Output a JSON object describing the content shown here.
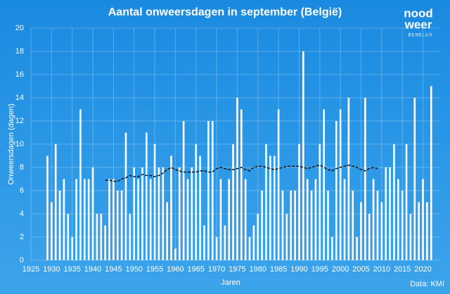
{
  "chart_data": {
    "type": "bar",
    "title": "Aantal onweersdagen in september (België)",
    "x_label": "Jaren",
    "y_label": "Onweersdagen (dagen)",
    "source": "Data: KMI",
    "logo": {
      "line1": "nood",
      "line2": "weer",
      "line3": "BENELUX"
    },
    "x": [
      1929,
      1930,
      1931,
      1932,
      1933,
      1934,
      1935,
      1936,
      1937,
      1938,
      1939,
      1940,
      1941,
      1942,
      1943,
      1944,
      1945,
      1946,
      1947,
      1948,
      1949,
      1950,
      1951,
      1952,
      1953,
      1954,
      1955,
      1956,
      1957,
      1958,
      1959,
      1960,
      1961,
      1962,
      1963,
      1964,
      1965,
      1966,
      1967,
      1968,
      1969,
      1970,
      1971,
      1972,
      1973,
      1974,
      1975,
      1976,
      1977,
      1978,
      1979,
      1980,
      1981,
      1982,
      1983,
      1984,
      1985,
      1986,
      1987,
      1988,
      1989,
      1990,
      1991,
      1992,
      1993,
      1994,
      1995,
      1996,
      1997,
      1998,
      1999,
      2000,
      2001,
      2002,
      2003,
      2004,
      2005,
      2006,
      2007,
      2008,
      2009,
      2010,
      2011,
      2012,
      2013,
      2014,
      2015,
      2016,
      2017,
      2018,
      2019,
      2020,
      2021,
      2022
    ],
    "series": [
      {
        "kind": "bar",
        "color": "#ffffff",
        "values": [
          9,
          5,
          10,
          6,
          7,
          4,
          2,
          7,
          13,
          7,
          7,
          8,
          4,
          4,
          3,
          7,
          7,
          6,
          6,
          11,
          4,
          8,
          7,
          8,
          11,
          7,
          10,
          8,
          8,
          5,
          9,
          1,
          8,
          12,
          7,
          8,
          10,
          9,
          3,
          12,
          12,
          2,
          7,
          3,
          7,
          10,
          14,
          13,
          7,
          2,
          3,
          4,
          6,
          10,
          9,
          9,
          13,
          6,
          4,
          6,
          6,
          10,
          18,
          7,
          6,
          7,
          10,
          13,
          6,
          2,
          12,
          13,
          7,
          14,
          6,
          2,
          5,
          14,
          4,
          7,
          6,
          5,
          8,
          8,
          10,
          7,
          6,
          10,
          4,
          14,
          5,
          7,
          5,
          15
        ]
      },
      {
        "kind": "line",
        "color": "#111111",
        "values": [
          null,
          null,
          null,
          null,
          null,
          null,
          null,
          null,
          null,
          null,
          null,
          null,
          null,
          null,
          6.9,
          6.9,
          6.8,
          6.8,
          7.0,
          7.1,
          7.3,
          7.2,
          7.2,
          7.4,
          7.3,
          7.3,
          7.2,
          7.3,
          7.5,
          7.8,
          8.0,
          7.8,
          7.7,
          7.6,
          7.6,
          7.6,
          7.6,
          7.7,
          7.7,
          7.6,
          7.6,
          7.9,
          8.0,
          7.9,
          7.8,
          7.8,
          7.9,
          8.0,
          7.8,
          7.7,
          8.0,
          8.1,
          8.1,
          8.0,
          7.9,
          7.8,
          7.9,
          8.0,
          8.1,
          8.1,
          8.1,
          8.1,
          8.0,
          7.9,
          8.0,
          8.1,
          8.2,
          8.0,
          7.8,
          7.7,
          7.9,
          8.0,
          8.1,
          8.2,
          8.1,
          8.0,
          7.8,
          7.7,
          7.9,
          8.0,
          7.9,
          null,
          null,
          null,
          null,
          null,
          null,
          null,
          null,
          null,
          null,
          null,
          null,
          null
        ]
      }
    ],
    "xlim": [
      1925,
      2024
    ],
    "xticks": [
      1925,
      1930,
      1935,
      1940,
      1945,
      1950,
      1955,
      1960,
      1965,
      1970,
      1975,
      1980,
      1985,
      1990,
      1995,
      2000,
      2005,
      2010,
      2015,
      2020
    ],
    "ylim": [
      0,
      20
    ],
    "yticks": [
      0,
      2,
      4,
      6,
      8,
      10,
      12,
      14,
      16,
      18,
      20
    ],
    "grid": true
  }
}
